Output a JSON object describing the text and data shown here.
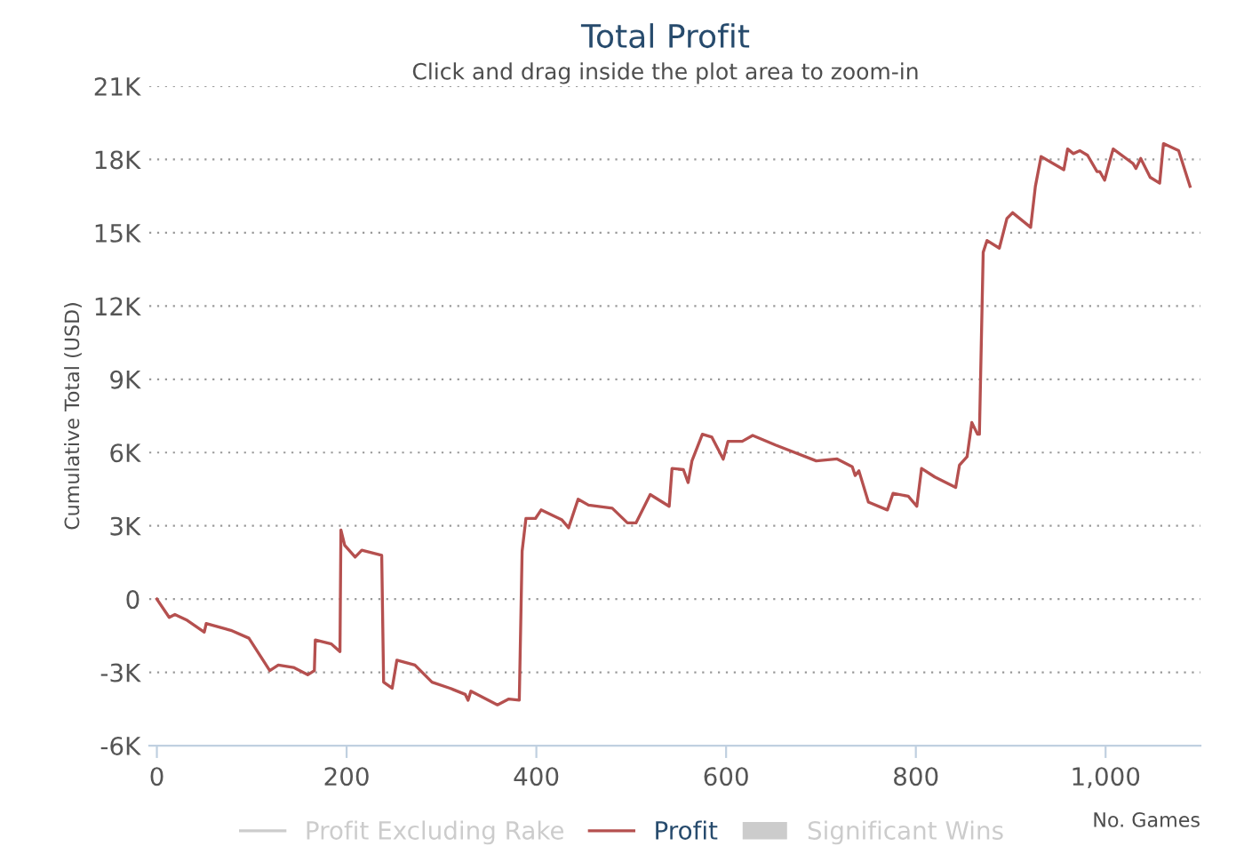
{
  "chart_data": {
    "type": "line",
    "title": "Total Profit",
    "subtitle": "Click and drag inside the plot area to zoom-in",
    "xlabel": "No. Games",
    "ylabel": "Cumulative Total (USD)",
    "xlim": [
      -8,
      1100
    ],
    "xticks": [
      0,
      200,
      400,
      600,
      800,
      {
        "value": 1000,
        "label": "1,000"
      }
    ],
    "ylim": [
      -6000,
      21000
    ],
    "yticks": [
      {
        "value": -6000,
        "label": "-6K"
      },
      {
        "value": -3000,
        "label": "-3K"
      },
      0,
      {
        "value": 3000,
        "label": "3K"
      },
      {
        "value": 6000,
        "label": "6K"
      },
      {
        "value": 9000,
        "label": "9K"
      },
      {
        "value": 12000,
        "label": "12K"
      },
      {
        "value": 15000,
        "label": "15K"
      },
      {
        "value": 18000,
        "label": "18K"
      },
      {
        "value": 21000,
        "label": "21K"
      }
    ],
    "grid": "y",
    "legend": "bottom",
    "line_style": "solid",
    "marker": "none",
    "series": [
      {
        "name": "Profit Excluding Rake",
        "color": "#cccccc",
        "type": "line"
      },
      {
        "name": "Profit",
        "color": "#b5504f",
        "x": [
          0,
          13,
          19,
          32,
          50,
          52,
          78,
          97,
          119,
          128,
          144,
          159,
          166,
          167,
          184,
          193,
          194,
          198,
          209,
          216,
          237,
          239,
          248,
          253,
          272,
          290,
          309,
          325,
          328,
          331,
          359,
          371,
          382,
          385,
          389,
          399,
          405,
          427,
          434,
          444,
          455,
          480,
          496,
          505,
          520,
          540,
          543,
          555,
          560,
          564,
          575,
          585,
          597,
          602,
          617,
          628,
          652,
          695,
          717,
          733,
          736,
          740,
          750,
          770,
          776,
          792,
          801,
          806,
          820,
          842,
          846,
          854,
          859,
          865,
          867,
          871,
          875,
          888,
          896,
          902,
          921,
          926,
          932,
          956,
          960,
          966,
          973,
          981,
          991,
          994,
          999,
          1004,
          1008,
          1029,
          1032,
          1037,
          1047,
          1057,
          1061,
          1077,
          1089
        ],
        "values": [
          0,
          -750,
          -630,
          -870,
          -1350,
          -1000,
          -1280,
          -1600,
          -2930,
          -2700,
          -2800,
          -3100,
          -2930,
          -1670,
          -1840,
          -2150,
          2830,
          2200,
          1720,
          2000,
          1790,
          -3400,
          -3650,
          -2500,
          -2700,
          -3400,
          -3650,
          -3900,
          -4140,
          -3770,
          -4330,
          -4090,
          -4140,
          1960,
          3300,
          3300,
          3650,
          3240,
          2920,
          4090,
          3850,
          3720,
          3120,
          3120,
          4280,
          3800,
          5350,
          5300,
          4770,
          5660,
          6750,
          6630,
          5730,
          6460,
          6460,
          6700,
          6310,
          5660,
          5740,
          5420,
          5060,
          5250,
          3970,
          3650,
          4330,
          4210,
          3800,
          5350,
          5000,
          4570,
          5490,
          5830,
          7230,
          6750,
          6750,
          14200,
          14680,
          14370,
          15580,
          15820,
          15220,
          16900,
          18120,
          17580,
          18430,
          18240,
          18360,
          18170,
          17500,
          17500,
          17150,
          17880,
          18430,
          17830,
          17630,
          18040,
          17270,
          17030,
          18650,
          18360,
          16900
        ]
      },
      {
        "name": "Significant Wins",
        "color": "#cccccc",
        "type": "area"
      }
    ]
  }
}
